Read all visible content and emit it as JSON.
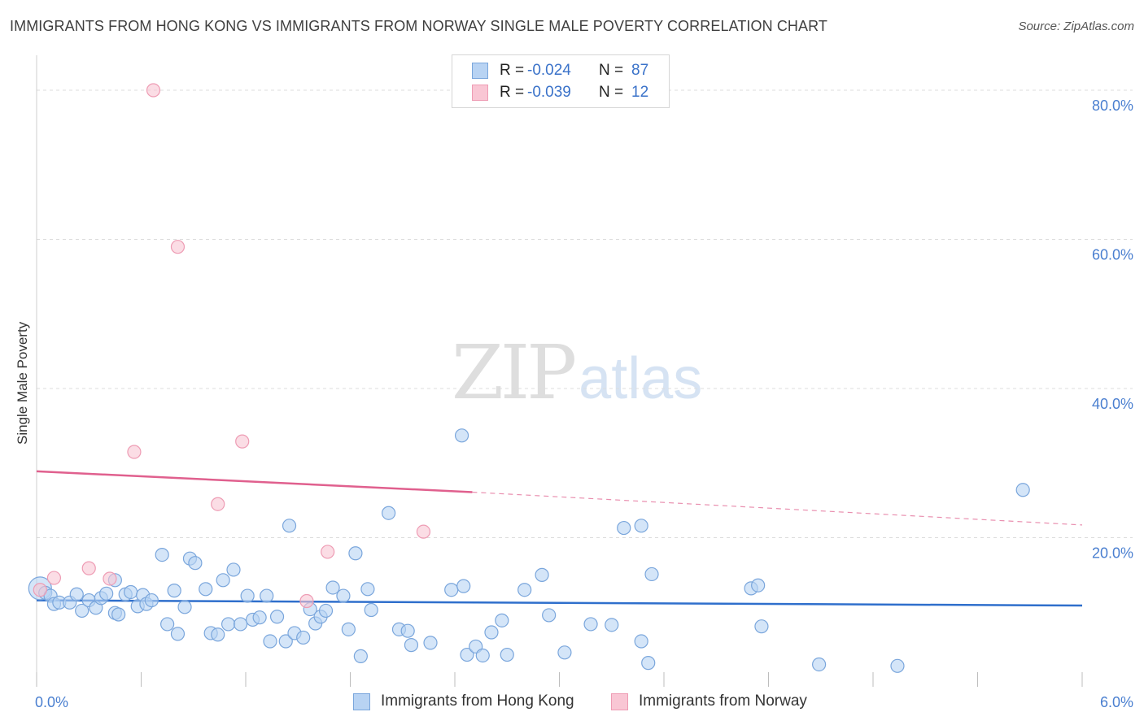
{
  "title": "IMMIGRANTS FROM HONG KONG VS IMMIGRANTS FROM NORWAY SINGLE MALE POVERTY CORRELATION CHART",
  "source": "Source: ZipAtlas.com",
  "watermark": {
    "zip": "ZIP",
    "atlas": "atlas"
  },
  "colors": {
    "hong_kong_fill": "#b8d3f3",
    "hong_kong_stroke": "#7aa6dc",
    "hong_kong_line": "#2f6fcc",
    "norway_fill": "#f9c6d4",
    "norway_stroke": "#ee9cb4",
    "norway_line": "#e0608e",
    "tick_text": "#4a7fd0",
    "grid": "#dcdcdc"
  },
  "legend": {
    "rows": [
      {
        "r_label": "R =",
        "r_value": "-0.024",
        "n_label": "N =",
        "n_value": "87"
      },
      {
        "r_label": "R =",
        "r_value": "-0.039",
        "n_label": "N =",
        "n_value": "12"
      }
    ]
  },
  "bottom_legend": {
    "hong_kong": "Immigrants from Hong Kong",
    "norway": "Immigrants from Norway"
  },
  "chart_data": {
    "type": "scatter",
    "title": "IMMIGRANTS FROM HONG KONG VS IMMIGRANTS FROM NORWAY SINGLE MALE POVERTY CORRELATION CHART",
    "xlabel": "",
    "ylabel": "Single Male Poverty",
    "xlim": [
      0,
      6
    ],
    "ylim": [
      0,
      80
    ],
    "x_tick_labels": [
      "0.0%",
      "6.0%"
    ],
    "y_ticks": [
      20,
      40,
      60,
      80
    ],
    "y_tick_labels": [
      "20.0%",
      "40.0%",
      "60.0%",
      "80.0%"
    ],
    "grid": true,
    "legend_position": "top-center",
    "series": [
      {
        "name": "Immigrants from Hong Kong",
        "r": -0.024,
        "n": 87,
        "trend": {
          "x": [
            0,
            6
          ],
          "y": [
            11.6,
            10.9
          ]
        },
        "points": [
          [
            0.02,
            13.2
          ],
          [
            0.05,
            12.6
          ],
          [
            0.08,
            12.2
          ],
          [
            0.1,
            11.1
          ],
          [
            0.13,
            11.3
          ],
          [
            0.19,
            11.3
          ],
          [
            0.23,
            12.4
          ],
          [
            0.26,
            10.2
          ],
          [
            0.3,
            11.6
          ],
          [
            0.34,
            10.6
          ],
          [
            0.37,
            11.9
          ],
          [
            0.4,
            12.5
          ],
          [
            0.45,
            14.3
          ],
          [
            0.45,
            9.9
          ],
          [
            0.47,
            9.7
          ],
          [
            0.51,
            12.4
          ],
          [
            0.54,
            12.7
          ],
          [
            0.58,
            10.8
          ],
          [
            0.61,
            12.3
          ],
          [
            0.63,
            11.1
          ],
          [
            0.66,
            11.6
          ],
          [
            0.72,
            17.7
          ],
          [
            0.75,
            8.4
          ],
          [
            0.79,
            12.9
          ],
          [
            0.81,
            7.1
          ],
          [
            0.85,
            10.7
          ],
          [
            0.88,
            17.2
          ],
          [
            0.91,
            16.6
          ],
          [
            0.97,
            13.1
          ],
          [
            1.0,
            7.2
          ],
          [
            1.04,
            7.0
          ],
          [
            1.07,
            14.3
          ],
          [
            1.1,
            8.4
          ],
          [
            1.13,
            15.7
          ],
          [
            1.17,
            8.4
          ],
          [
            1.21,
            12.2
          ],
          [
            1.24,
            9.0
          ],
          [
            1.28,
            9.3
          ],
          [
            1.32,
            12.2
          ],
          [
            1.34,
            6.1
          ],
          [
            1.38,
            9.4
          ],
          [
            1.43,
            6.1
          ],
          [
            1.45,
            21.6
          ],
          [
            1.48,
            7.2
          ],
          [
            1.53,
            6.6
          ],
          [
            1.57,
            10.4
          ],
          [
            1.6,
            8.5
          ],
          [
            1.63,
            9.4
          ],
          [
            1.66,
            10.2
          ],
          [
            1.7,
            13.3
          ],
          [
            1.76,
            12.2
          ],
          [
            1.79,
            7.7
          ],
          [
            1.83,
            17.9
          ],
          [
            1.86,
            4.1
          ],
          [
            1.9,
            13.1
          ],
          [
            1.92,
            10.3
          ],
          [
            2.02,
            23.3
          ],
          [
            2.08,
            7.7
          ],
          [
            2.13,
            7.5
          ],
          [
            2.15,
            5.6
          ],
          [
            2.26,
            5.9
          ],
          [
            2.38,
            13.0
          ],
          [
            2.44,
            33.7
          ],
          [
            2.45,
            13.5
          ],
          [
            2.47,
            4.3
          ],
          [
            2.52,
            5.4
          ],
          [
            2.56,
            4.2
          ],
          [
            2.61,
            7.3
          ],
          [
            2.67,
            8.9
          ],
          [
            2.7,
            4.3
          ],
          [
            2.8,
            13.0
          ],
          [
            2.9,
            15.0
          ],
          [
            2.94,
            9.6
          ],
          [
            3.03,
            4.6
          ],
          [
            3.18,
            8.4
          ],
          [
            3.3,
            8.3
          ],
          [
            3.37,
            21.3
          ],
          [
            3.47,
            21.6
          ],
          [
            3.47,
            6.1
          ],
          [
            3.51,
            3.2
          ],
          [
            3.53,
            15.1
          ],
          [
            4.1,
            13.2
          ],
          [
            4.14,
            13.6
          ],
          [
            4.16,
            8.1
          ],
          [
            4.49,
            3.0
          ],
          [
            4.94,
            2.8
          ],
          [
            5.66,
            26.4
          ]
        ]
      },
      {
        "name": "Immigrants from Norway",
        "r": -0.039,
        "n": 12,
        "trend": {
          "x": [
            0,
            2.5
          ],
          "y": [
            28.9,
            26.1
          ],
          "dashed_to": {
            "x": 6,
            "y": 21.7
          }
        },
        "points": [
          [
            0.02,
            13.0
          ],
          [
            0.1,
            14.6
          ],
          [
            0.3,
            15.9
          ],
          [
            0.42,
            14.5
          ],
          [
            0.56,
            31.5
          ],
          [
            0.67,
            80.0
          ],
          [
            0.81,
            59.0
          ],
          [
            1.04,
            24.5
          ],
          [
            1.18,
            32.9
          ],
          [
            1.55,
            11.5
          ],
          [
            1.67,
            18.1
          ],
          [
            2.22,
            20.8
          ]
        ]
      }
    ]
  }
}
